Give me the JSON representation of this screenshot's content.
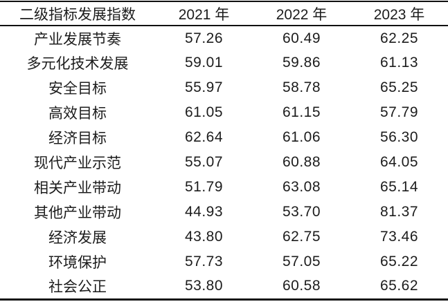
{
  "page": {
    "background": "#ffffff",
    "text_color": "#1c1c1c",
    "rule_color": "#101010"
  },
  "table": {
    "header": [
      "二级指标发展指数",
      "2021 年",
      "2022 年",
      "2023 年"
    ],
    "rows": [
      {
        "label": "产业发展节奏",
        "values": [
          "57.26",
          "60.49",
          "62.25"
        ]
      },
      {
        "label": "多元化技术发展",
        "values": [
          "59.01",
          "59.86",
          "61.13"
        ]
      },
      {
        "label": "安全目标",
        "values": [
          "55.97",
          "58.78",
          "65.25"
        ]
      },
      {
        "label": "高效目标",
        "values": [
          "61.05",
          "61.15",
          "57.79"
        ]
      },
      {
        "label": "经济目标",
        "values": [
          "62.64",
          "61.06",
          "56.30"
        ]
      },
      {
        "label": "现代产业示范",
        "values": [
          "55.07",
          "60.88",
          "64.05"
        ]
      },
      {
        "label": "相关产业带动",
        "values": [
          "51.79",
          "63.08",
          "65.14"
        ]
      },
      {
        "label": "其他产业带动",
        "values": [
          "44.93",
          "53.70",
          "81.37"
        ]
      },
      {
        "label": "经济发展",
        "values": [
          "43.80",
          "62.75",
          "73.46"
        ]
      },
      {
        "label": "环境保护",
        "values": [
          "57.73",
          "57.05",
          "65.22"
        ]
      },
      {
        "label": "社会公正",
        "values": [
          "53.80",
          "60.58",
          "65.62"
        ]
      }
    ]
  },
  "chart_data": {
    "type": "table",
    "title": "二级指标发展指数",
    "columns": [
      "二级指标发展指数",
      "2021 年",
      "2022 年",
      "2023 年"
    ],
    "categories": [
      "产业发展节奏",
      "多元化技术发展",
      "安全目标",
      "高效目标",
      "经济目标",
      "现代产业示范",
      "相关产业带动",
      "其他产业带动",
      "经济发展",
      "环境保护",
      "社会公正"
    ],
    "series": [
      {
        "name": "2021 年",
        "values": [
          57.26,
          59.01,
          55.97,
          61.05,
          62.64,
          55.07,
          51.79,
          44.93,
          43.8,
          57.73,
          53.8
        ]
      },
      {
        "name": "2022 年",
        "values": [
          60.49,
          59.86,
          58.78,
          61.15,
          61.06,
          60.88,
          63.08,
          53.7,
          62.75,
          57.05,
          60.58
        ]
      },
      {
        "name": "2023 年",
        "values": [
          62.25,
          61.13,
          65.25,
          57.79,
          56.3,
          64.05,
          65.14,
          81.37,
          73.46,
          65.22,
          65.62
        ]
      }
    ]
  }
}
